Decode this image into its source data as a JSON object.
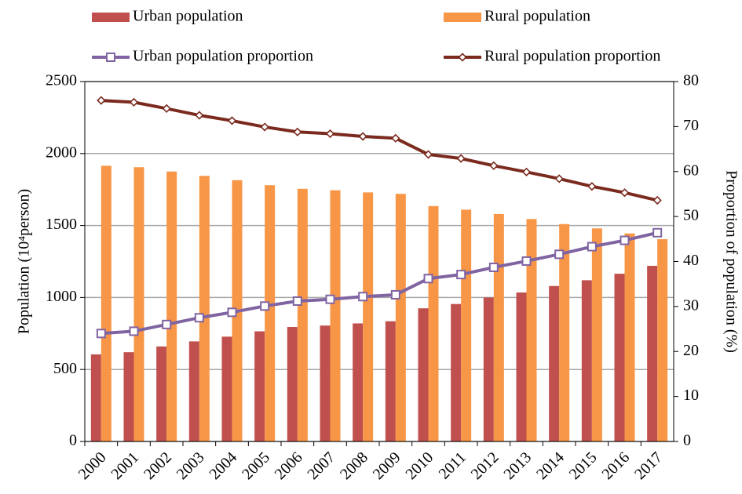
{
  "chart_data": {
    "type": "bar",
    "categories": [
      "2000",
      "2001",
      "2002",
      "2003",
      "2004",
      "2005",
      "2006",
      "2007",
      "2008",
      "2009",
      "2010",
      "2011",
      "2012",
      "2013",
      "2014",
      "2015",
      "2016",
      "2017"
    ],
    "series": [
      {
        "name": "Urban population",
        "type": "bar",
        "color": "#c0504d",
        "values": [
          605,
          620,
          660,
          695,
          728,
          765,
          795,
          805,
          820,
          835,
          925,
          955,
          1000,
          1035,
          1080,
          1120,
          1165,
          1220
        ]
      },
      {
        "name": "Rural population",
        "type": "bar",
        "color": "#f79646",
        "values": [
          1915,
          1905,
          1875,
          1845,
          1815,
          1780,
          1755,
          1745,
          1730,
          1720,
          1635,
          1610,
          1580,
          1545,
          1510,
          1480,
          1445,
          1405
        ]
      },
      {
        "name": "Urban population proportion",
        "type": "line",
        "marker": "square",
        "axis": "y2",
        "color": "#8064a2",
        "values": [
          24.0,
          24.5,
          26.0,
          27.5,
          28.7,
          30.1,
          31.2,
          31.6,
          32.2,
          32.6,
          36.2,
          37.1,
          38.7,
          40.1,
          41.6,
          43.3,
          44.7,
          46.4
        ]
      },
      {
        "name": "Rural population proportion",
        "type": "line",
        "marker": "diamond",
        "axis": "y2",
        "color": "#7b2a1e",
        "values": [
          75.8,
          75.4,
          74.0,
          72.5,
          71.3,
          69.9,
          68.8,
          68.4,
          67.8,
          67.4,
          63.8,
          62.9,
          61.3,
          59.9,
          58.4,
          56.7,
          55.3,
          53.6
        ]
      }
    ],
    "ylabel": "Population (10⁴person)",
    "y2label": "Proportion of population (%)",
    "ylim": [
      0,
      2500
    ],
    "yticks": [
      0,
      500,
      1000,
      1500,
      2000,
      2500
    ],
    "y2lim": [
      0,
      80
    ],
    "y2ticks": [
      0,
      10,
      20,
      30,
      40,
      50,
      60,
      70,
      80
    ],
    "grid": true
  }
}
